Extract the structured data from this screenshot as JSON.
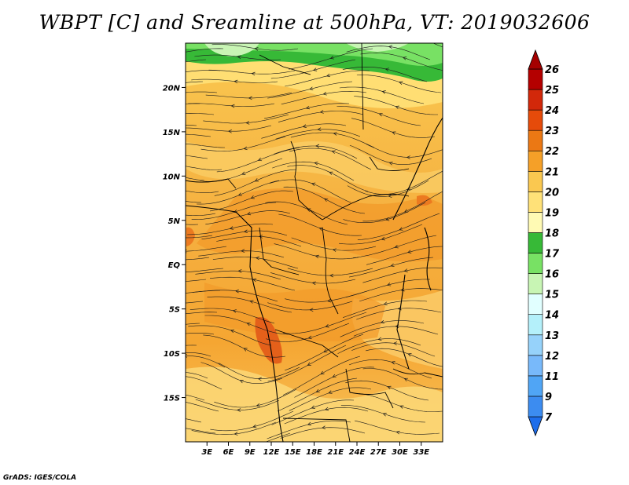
{
  "title": "WBPT [C] and Sreamline at 500hPa, VT: 2019032606",
  "credit": "GrADS: IGES/COLA",
  "map": {
    "lon_range": [
      0,
      36
    ],
    "lat_range": [
      -20,
      25
    ],
    "lat_ticks": [
      {
        "value": 20,
        "label": "20N"
      },
      {
        "value": 15,
        "label": "15N"
      },
      {
        "value": 10,
        "label": "10N"
      },
      {
        "value": 5,
        "label": "5N"
      },
      {
        "value": 0,
        "label": "EQ"
      },
      {
        "value": -5,
        "label": "5S"
      },
      {
        "value": -10,
        "label": "10S"
      },
      {
        "value": -15,
        "label": "15S"
      }
    ],
    "lon_ticks": [
      {
        "value": 3,
        "label": "3E"
      },
      {
        "value": 6,
        "label": "6E"
      },
      {
        "value": 9,
        "label": "9E"
      },
      {
        "value": 12,
        "label": "12E"
      },
      {
        "value": 15,
        "label": "15E"
      },
      {
        "value": 18,
        "label": "18E"
      },
      {
        "value": 21,
        "label": "21E"
      },
      {
        "value": 24,
        "label": "24E"
      },
      {
        "value": 27,
        "label": "27E"
      },
      {
        "value": 30,
        "label": "30E"
      },
      {
        "value": 33,
        "label": "33E"
      }
    ]
  },
  "colorbar": {
    "levels": [
      "7",
      "9",
      "11",
      "12",
      "13",
      "14",
      "15",
      "16",
      "17",
      "18",
      "19",
      "20",
      "21",
      "22",
      "23",
      "24",
      "25",
      "26"
    ],
    "colors": [
      "#1e6eeb",
      "#3c8cf0",
      "#50a5f5",
      "#78b9fa",
      "#96d2fa",
      "#b4f0fa",
      "#e1ffff",
      "#c8f5b4",
      "#78e164",
      "#37b937",
      "#fffab4",
      "#ffe178",
      "#fac850",
      "#f5a028",
      "#eb7814",
      "#e64b0a",
      "#d2280a",
      "#b40000",
      "#a50000"
    ]
  }
}
